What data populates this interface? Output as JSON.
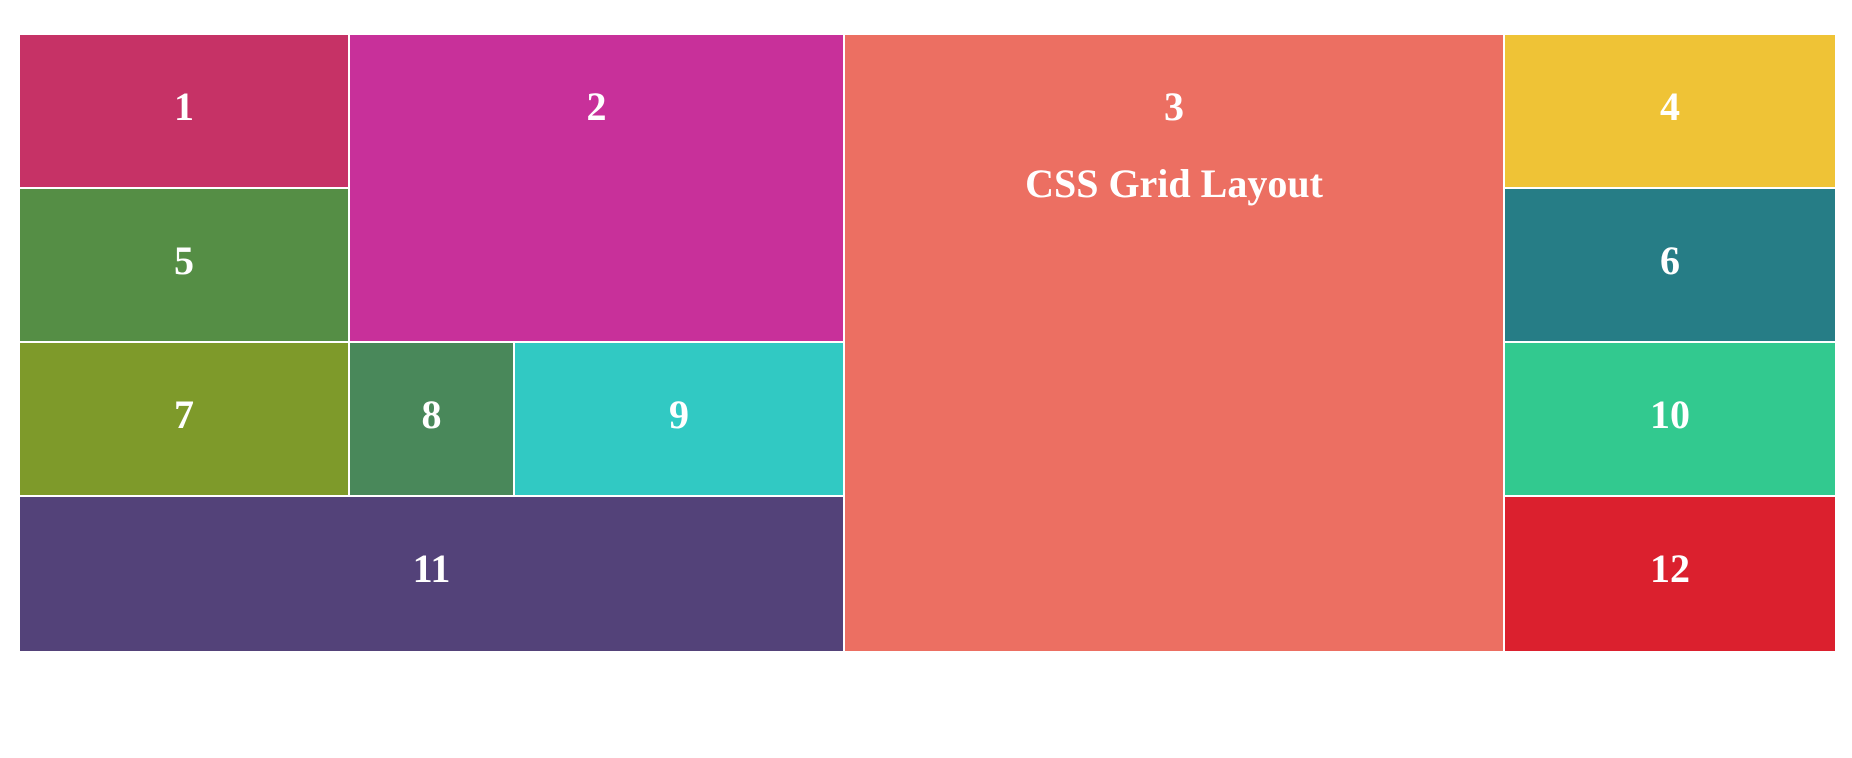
{
  "grid": {
    "subtitle": "CSS Grid Layout",
    "cells": [
      {
        "label": "1",
        "color": "#c63266"
      },
      {
        "label": "2",
        "color": "#c8309a"
      },
      {
        "label": "3",
        "color": "#ec6f62"
      },
      {
        "label": "4",
        "color": "#efc336"
      },
      {
        "label": "5",
        "color": "#558e45"
      },
      {
        "label": "6",
        "color": "#267d86"
      },
      {
        "label": "7",
        "color": "#7e9a2a"
      },
      {
        "label": "8",
        "color": "#49885a"
      },
      {
        "label": "9",
        "color": "#31c9c3"
      },
      {
        "label": "10",
        "color": "#32c98f"
      },
      {
        "label": "11",
        "color": "#534279"
      },
      {
        "label": "12",
        "color": "#db202e"
      }
    ]
  }
}
